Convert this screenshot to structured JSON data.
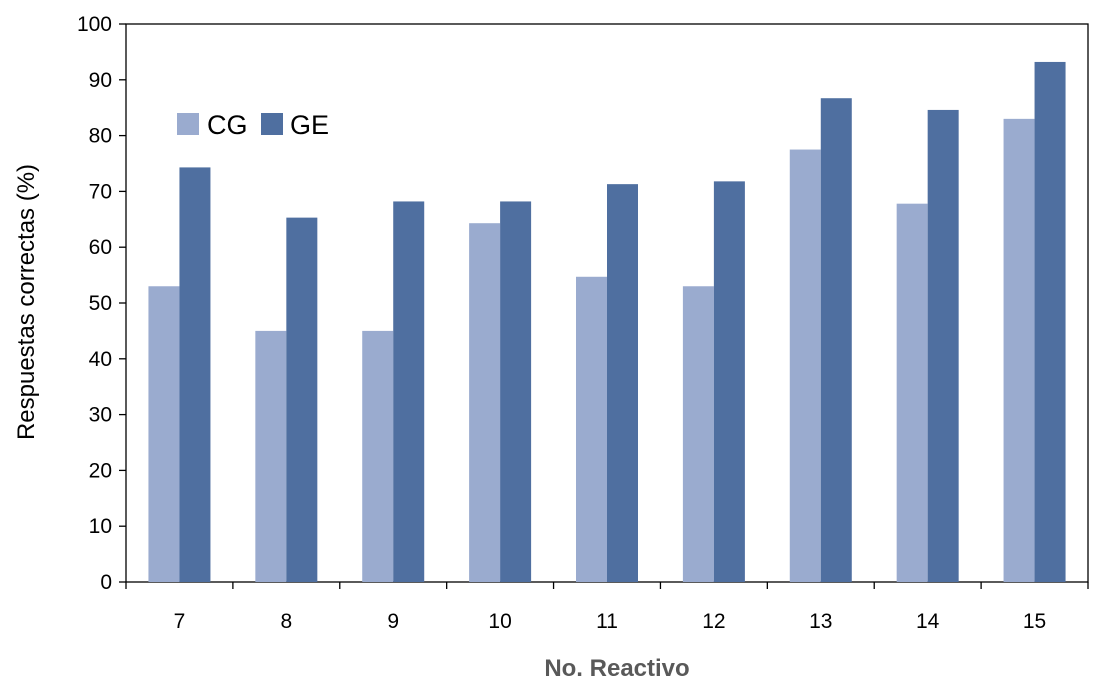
{
  "chart_data": {
    "type": "bar",
    "title": "",
    "xlabel": "No. Reactivo",
    "ylabel": "Respuestas correctas (%)",
    "categories": [
      "7",
      "8",
      "9",
      "10",
      "11",
      "12",
      "13",
      "14",
      "15"
    ],
    "series": [
      {
        "name": "CG",
        "color": "#9aabcf",
        "values": [
          53,
          45,
          45,
          64.3,
          54.7,
          53,
          77.5,
          67.8,
          83
        ]
      },
      {
        "name": "GE",
        "color": "#4f6fa0",
        "values": [
          74.3,
          65.3,
          68.2,
          68.2,
          71.3,
          71.8,
          86.7,
          84.6,
          93.2
        ]
      }
    ],
    "ylim": [
      0,
      100
    ],
    "yticks": [
      0,
      10,
      20,
      30,
      40,
      50,
      60,
      70,
      80,
      90,
      100
    ],
    "grid": false,
    "legend_position": "top-left"
  }
}
